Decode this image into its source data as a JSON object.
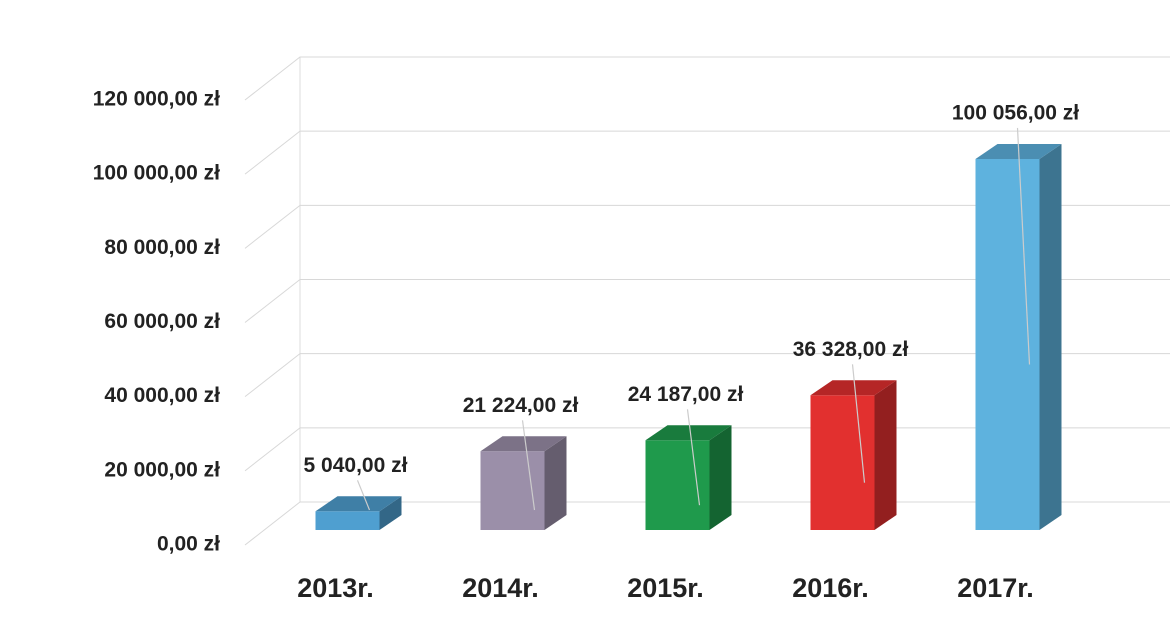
{
  "chart_data": {
    "type": "bar3d",
    "categories": [
      "2013r.",
      "2014r.",
      "2015r.",
      "2016r.",
      "2017r."
    ],
    "values": [
      5040,
      21224,
      24187,
      36328,
      100056
    ],
    "value_labels": [
      "5 040,00 zł",
      "21 224,00 zł",
      "24 187,00 zł",
      "36 328,00 zł",
      "100 056,00 zł"
    ],
    "colors": [
      "#4f9fd0",
      "#9b8fa9",
      "#1f9a4c",
      "#e2302f",
      "#5eb2de"
    ],
    "ylim": [
      0,
      120000
    ],
    "yticks": [
      {
        "value": 0,
        "label": "0,00 zł"
      },
      {
        "value": 20000,
        "label": "20 000,00 zł"
      },
      {
        "value": 40000,
        "label": "40 000,00 zł"
      },
      {
        "value": 60000,
        "label": "60 000,00 zł"
      },
      {
        "value": 80000,
        "label": "80 000,00 zł"
      },
      {
        "value": 100000,
        "label": "100 000,00 zł"
      },
      {
        "value": 120000,
        "label": "120 000,00 zł"
      }
    ],
    "grid": true
  }
}
